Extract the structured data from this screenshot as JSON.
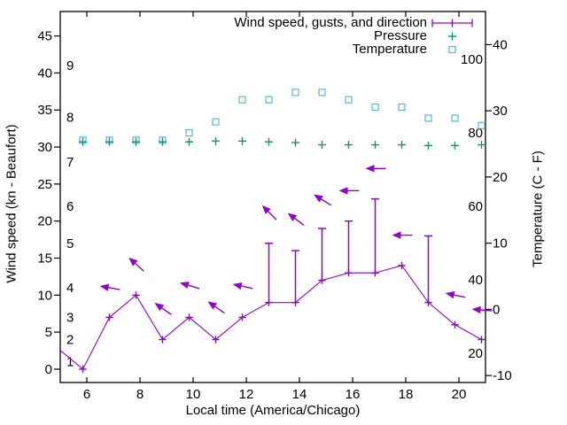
{
  "chart_data": {
    "type": "line",
    "xlabel": "Local time (America/Chicago)",
    "ylabel_left": "Wind speed (kn - Beaufort)",
    "ylabel_right": "Temperature (C - F)",
    "legend_position": "top-right-inside",
    "grid": false,
    "xlim": [
      5,
      21
    ],
    "ylim_knots": [
      -1.8,
      48.3
    ],
    "ylim_celsius": [
      -11.05,
      45
    ],
    "x_ticks": [
      6,
      8,
      10,
      12,
      14,
      16,
      18,
      20
    ],
    "knot_ticks": [
      0,
      5,
      10,
      15,
      20,
      25,
      30,
      35,
      40,
      45
    ],
    "beaufort_inner_ticks": [
      {
        "label": "1",
        "kn": 1
      },
      {
        "label": "2",
        "kn": 4
      },
      {
        "label": "3",
        "kn": 7
      },
      {
        "label": "4",
        "kn": 11
      },
      {
        "label": "5",
        "kn": 17
      },
      {
        "label": "6",
        "kn": 22
      },
      {
        "label": "7",
        "kn": 28
      },
      {
        "label": "8",
        "kn": 34
      },
      {
        "label": "9",
        "kn": 41
      }
    ],
    "celsius_ticks": [
      -10,
      0,
      10,
      20,
      30,
      40
    ],
    "fahrenheit_inner_ticks": [
      20,
      40,
      60,
      80,
      100
    ],
    "hours": [
      5.85,
      6.85,
      7.85,
      8.85,
      9.85,
      10.85,
      11.85,
      12.85,
      13.85,
      14.85,
      15.85,
      16.85,
      17.85,
      18.85,
      19.85,
      20.85
    ],
    "series": {
      "wind": {
        "label": "Wind speed, gusts, and direction",
        "color": "#9400d3",
        "unit": "kn",
        "knots": [
          0,
          7,
          10,
          4,
          7,
          4,
          7,
          9,
          9,
          12,
          13,
          13,
          14,
          9,
          6,
          4
        ],
        "lead_in_point": {
          "hour": 4.85,
          "knots": 3
        }
      },
      "gusts": [
        {
          "hour": 12.85,
          "from_kn": 9,
          "to_kn": 17
        },
        {
          "hour": 13.85,
          "from_kn": 9,
          "to_kn": 16
        },
        {
          "hour": 14.85,
          "from_kn": 12,
          "to_kn": 19
        },
        {
          "hour": 15.85,
          "from_kn": 13,
          "to_kn": 20
        },
        {
          "hour": 16.85,
          "from_kn": 13,
          "to_kn": 23
        },
        {
          "hour": 18.85,
          "from_kn": 9,
          "to_kn": 18
        }
      ],
      "wind_direction_arrows": [
        {
          "hour": 6.85,
          "kn": 11.0,
          "angle_deg": 190
        },
        {
          "hour": 7.85,
          "kn": 14.2,
          "angle_deg": 222
        },
        {
          "hour": 8.85,
          "kn": 8.2,
          "angle_deg": 215
        },
        {
          "hour": 9.85,
          "kn": 11.3,
          "angle_deg": 197
        },
        {
          "hour": 10.85,
          "kn": 8.4,
          "angle_deg": 215
        },
        {
          "hour": 11.85,
          "kn": 11.2,
          "angle_deg": 192
        },
        {
          "hour": 12.85,
          "kn": 21.2,
          "angle_deg": 225
        },
        {
          "hour": 13.85,
          "kn": 20.3,
          "angle_deg": 217
        },
        {
          "hour": 14.85,
          "kn": 22.9,
          "angle_deg": 212
        },
        {
          "hour": 15.85,
          "kn": 24.1,
          "angle_deg": 180
        },
        {
          "hour": 16.85,
          "kn": 27.1,
          "angle_deg": 180
        },
        {
          "hour": 17.85,
          "kn": 18.1,
          "angle_deg": 180
        },
        {
          "hour": 19.85,
          "kn": 10.0,
          "angle_deg": 192
        },
        {
          "hour": 20.85,
          "kn": 8.0,
          "angle_deg": 185
        }
      ],
      "pressure": {
        "label": "Pressure",
        "color": "#009e73",
        "note": "no pressure scale shown; values read against left-axis numbers",
        "values_left_axis_units": [
          30.7,
          30.7,
          30.7,
          30.7,
          30.7,
          30.8,
          30.8,
          30.7,
          30.6,
          30.3,
          30.3,
          30.3,
          30.3,
          30.2,
          30.2,
          30.3
        ]
      },
      "temperature": {
        "label": "Temperature",
        "color": "#56b4e9",
        "unit": "F",
        "fahrenheit": [
          78,
          78,
          78,
          78,
          80,
          83,
          89,
          89,
          91,
          91,
          89,
          87,
          87,
          84,
          84,
          82
        ]
      }
    },
    "colors": {
      "axis": "#000000",
      "background": "#ffffff",
      "wind": "#9400d3",
      "pressure": "#009e73",
      "temperature": "#56b4e9"
    }
  }
}
